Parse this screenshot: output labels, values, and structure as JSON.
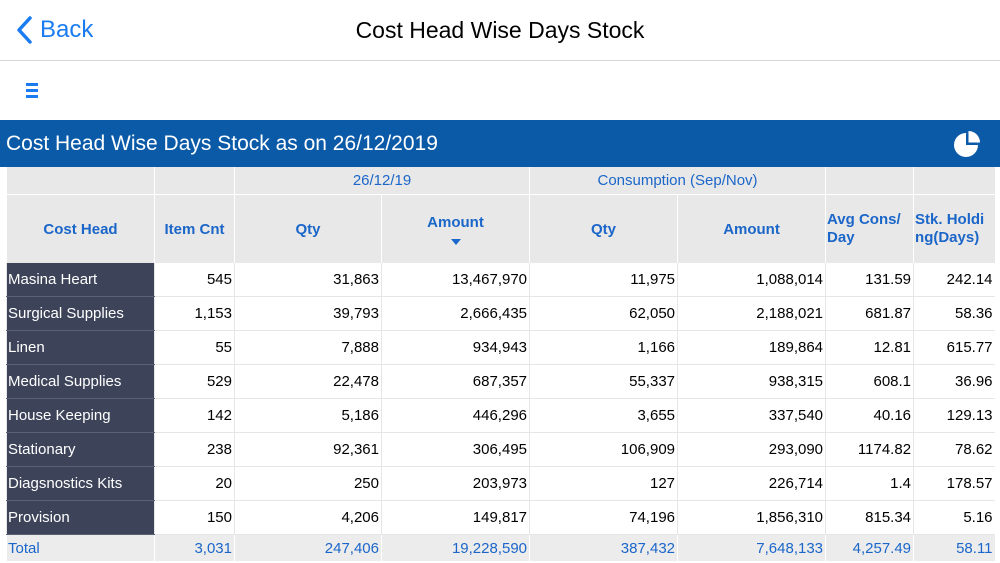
{
  "nav": {
    "back_label": "Back",
    "title": "Cost Head Wise Days Stock"
  },
  "banner": {
    "title": "Cost Head Wise Days Stock as on 26/12/2019"
  },
  "table": {
    "group_headers": {
      "date": "26/12/19",
      "consumption": "Consumption (Sep/Nov)"
    },
    "columns": [
      "Cost Head",
      "Item Cnt",
      "Qty",
      "Amount",
      "Qty",
      "Amount",
      "Avg Cons/ Day",
      "Stk. Holding(Days)"
    ],
    "rows": [
      [
        "Masina Heart",
        "545",
        "31,863",
        "13,467,970",
        "11,975",
        "1,088,014",
        "131.59",
        "242.14"
      ],
      [
        "Surgical Supplies",
        "1,153",
        "39,793",
        "2,666,435",
        "62,050",
        "2,188,021",
        "681.87",
        "58.36"
      ],
      [
        "Linen",
        "55",
        "7,888",
        "934,943",
        "1,166",
        "189,864",
        "12.81",
        "615.77"
      ],
      [
        "Medical Supplies",
        "529",
        "22,478",
        "687,357",
        "55,337",
        "938,315",
        "608.1",
        "36.96"
      ],
      [
        "House Keeping",
        "142",
        "5,186",
        "446,296",
        "3,655",
        "337,540",
        "40.16",
        "129.13"
      ],
      [
        "Stationary",
        "238",
        "92,361",
        "306,495",
        "106,909",
        "293,090",
        "1174.82",
        "78.62"
      ],
      [
        "Diagsnostics Kits",
        "20",
        "250",
        "203,973",
        "127",
        "226,714",
        "1.4",
        "178.57"
      ],
      [
        "Provision",
        "150",
        "4,206",
        "149,817",
        "74,196",
        "1,856,310",
        "815.34",
        "5.16"
      ]
    ],
    "total": [
      "Total",
      "3,031",
      "247,406",
      "19,228,590",
      "387,432",
      "7,648,133",
      "4,257.49",
      "58.11"
    ]
  },
  "icons": {
    "back": "chevron-left-icon",
    "menu": "menu-icon",
    "chart": "pie-chart-icon",
    "sort": "sort-descending-icon"
  },
  "colors": {
    "accent": "#1a7cf0",
    "banner": "#0b5aa8",
    "row_header": "#3d4459",
    "header_text": "#1b66c9"
  }
}
